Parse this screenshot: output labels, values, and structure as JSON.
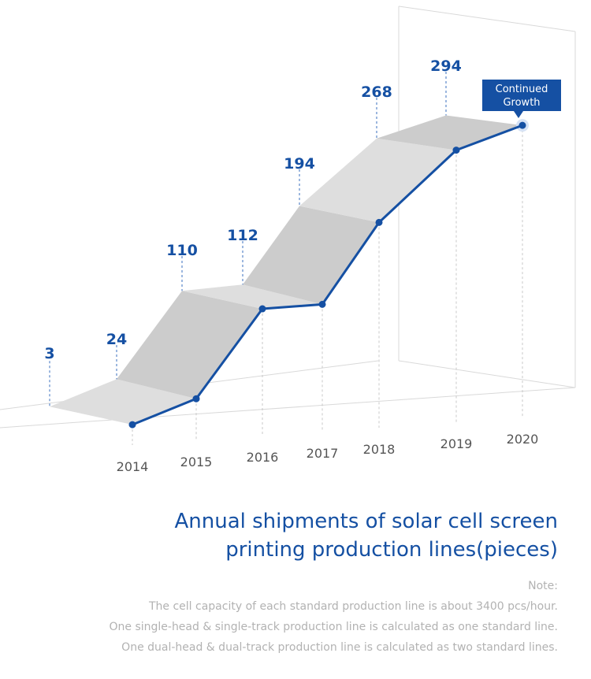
{
  "chart_data": {
    "type": "line",
    "categories": [
      "2014",
      "2015",
      "2016",
      "2017",
      "2018",
      "2019",
      "2020"
    ],
    "series": [
      {
        "values": [
          3,
          24,
          110,
          112,
          194,
          268,
          294
        ]
      }
    ],
    "callout": "Continued Growth",
    "title_lines": [
      "Annual shipments of solar cell screen",
      "printing production lines(pieces)"
    ],
    "note_label": "Note:",
    "notes": [
      "The cell capacity of each standard production line is about 3400 pcs/hour.",
      "One single-head & single-track production line is calculated as one standard line.",
      "One dual-head & dual-track production line is calculated as two standard lines."
    ]
  },
  "colors": {
    "line": "#1550a3",
    "step_light": "#dedede",
    "step_dark": "#cccccc",
    "label": "#1550a3",
    "note": "#b2b2b2"
  }
}
